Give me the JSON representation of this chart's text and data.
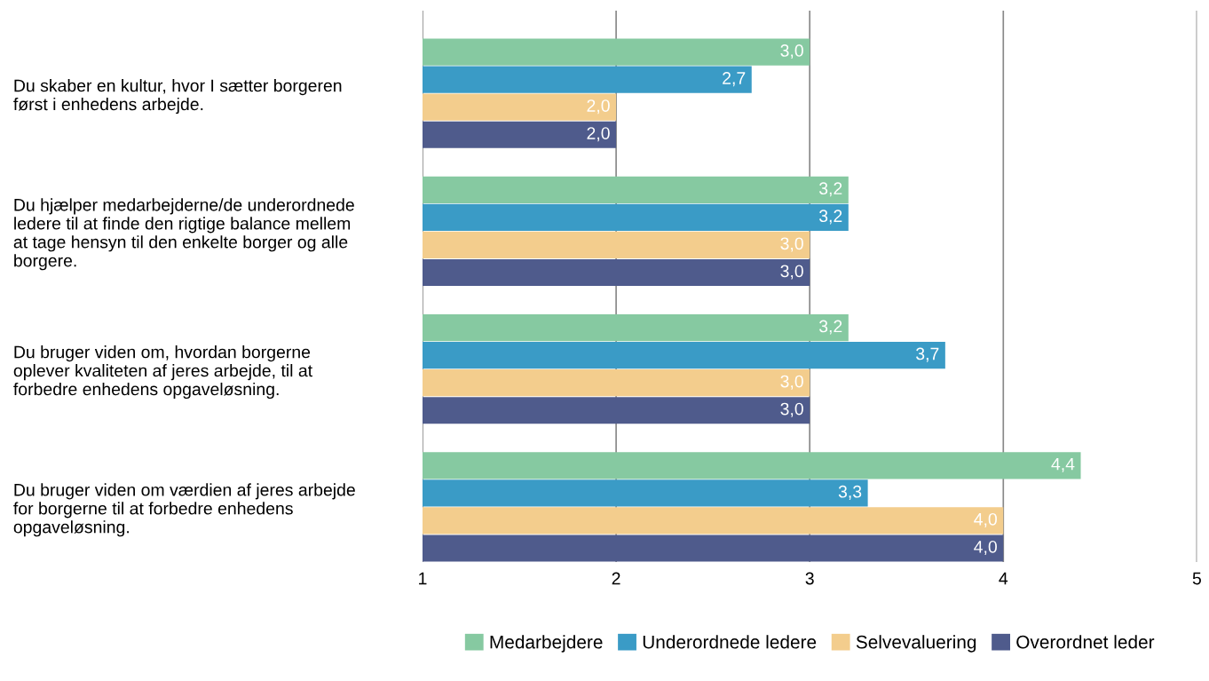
{
  "chart_data": {
    "type": "bar",
    "orientation": "horizontal",
    "categories": [
      "Du skaber en kultur, hvor I sætter borgeren\nførst i enhedens arbejde.",
      "Du hjælper medarbejderne/de underordnede\nledere til at finde den rigtige balance mellem\nat tage hensyn til den enkelte borger og alle\nborgere.",
      "Du bruger viden om, hvordan borgerne\noplever kvaliteten af jeres arbejde, til at\nforbedre enhedens opgaveløsning.",
      "Du bruger viden om værdien af jeres arbejde\nfor borgerne til at forbedre enhedens\nopgaveløsning."
    ],
    "series": [
      {
        "name": "Medarbejdere",
        "color": "#86c9a1",
        "values": [
          3.0,
          3.2,
          3.2,
          4.4
        ],
        "value_labels": [
          "3,0",
          "3,2",
          "3,2",
          "4,4"
        ]
      },
      {
        "name": "Underordnede ledere",
        "color": "#3a9bc6",
        "values": [
          2.7,
          3.2,
          3.7,
          3.3
        ],
        "value_labels": [
          "2,7",
          "3,2",
          "3,7",
          "3,3"
        ]
      },
      {
        "name": "Selvevaluering",
        "color": "#f3cd8d",
        "values": [
          2.0,
          3.0,
          3.0,
          4.0
        ],
        "value_labels": [
          "2,0",
          "3,0",
          "3,0",
          "4,0"
        ]
      },
      {
        "name": "Overordnet leder",
        "color": "#4f5b8c",
        "values": [
          2.0,
          3.0,
          3.0,
          4.0
        ],
        "value_labels": [
          "2,0",
          "3,0",
          "3,0",
          "4,0"
        ]
      }
    ],
    "xlim": [
      1,
      5
    ],
    "xticks": [
      1,
      2,
      3,
      4,
      5
    ],
    "grid": "x",
    "legend": "bottom"
  }
}
